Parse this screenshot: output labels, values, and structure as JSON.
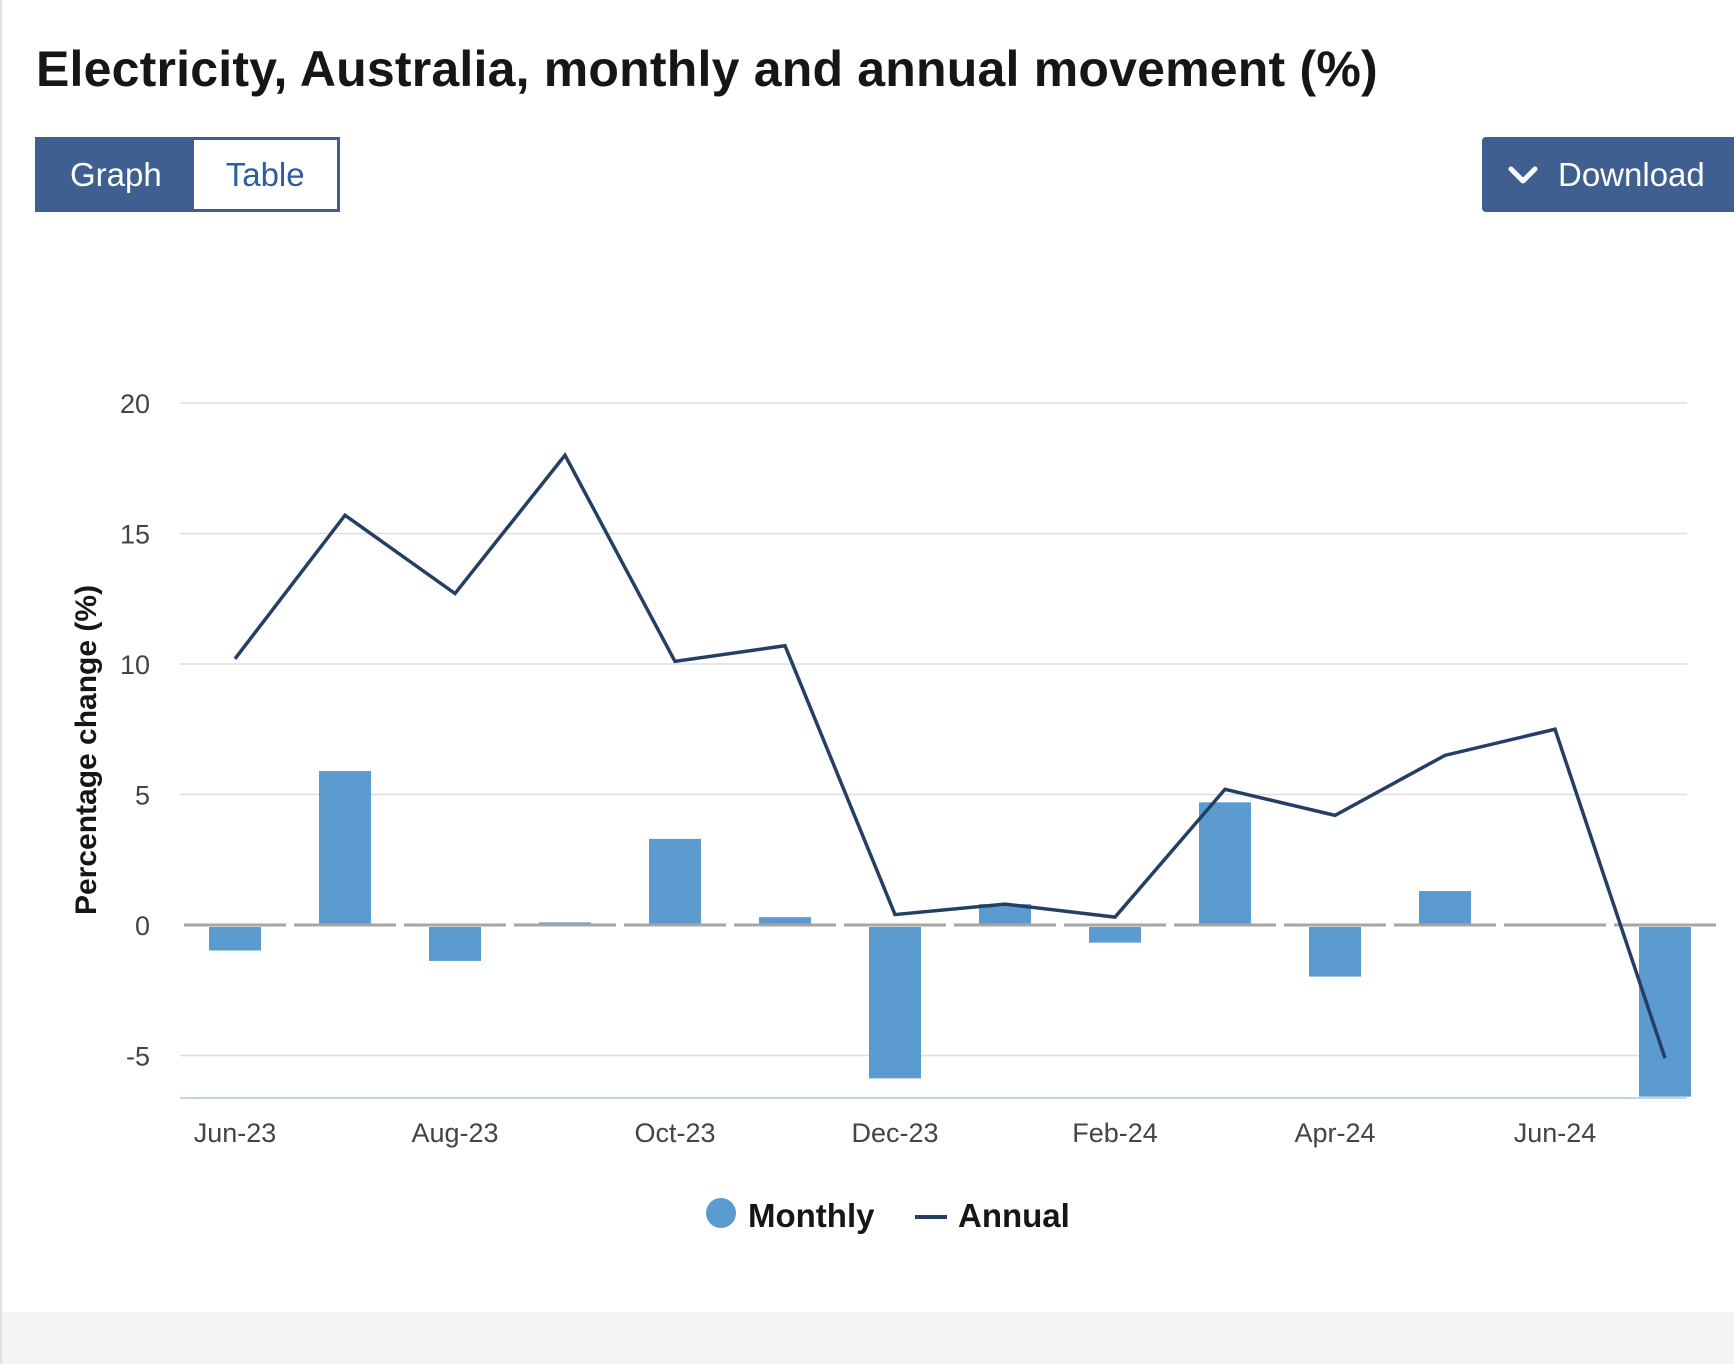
{
  "header": {
    "title": "Electricity, Australia, monthly and annual movement (%)"
  },
  "view_toggle": {
    "graph_label": "Graph",
    "table_label": "Table",
    "selected": "Graph"
  },
  "download": {
    "label": "Download",
    "icon": "chevron-down-icon"
  },
  "colors": {
    "toggle_bg": "#3e5f8f",
    "monthly_bar": "#5b9bd0",
    "annual_line": "#243f63",
    "zero_line": "#a6a6a6",
    "grid": "#dddddd"
  },
  "chart_data": {
    "type": "bar+line",
    "title": "",
    "ylabel": "Percentage change (%)",
    "xlabel": "",
    "ylim": [
      -6.6,
      20
    ],
    "yticks": [
      20,
      15,
      10,
      5,
      0,
      -5
    ],
    "ytick_labels": [
      "20",
      "15",
      "10",
      "5",
      "0",
      "-5"
    ],
    "categories": [
      "Jun-23",
      "Jul-23",
      "Aug-23",
      "Sep-23",
      "Oct-23",
      "Nov-23",
      "Dec-23",
      "Jan-24",
      "Feb-24",
      "Mar-24",
      "Apr-24",
      "May-24",
      "Jun-24",
      "Jul-24"
    ],
    "xtick_labels": [
      "Jun-23",
      "",
      "Aug-23",
      "",
      "Oct-23",
      "",
      "Dec-23",
      "",
      "Feb-24",
      "",
      "Apr-24",
      "",
      "Jun-24",
      ""
    ],
    "series": [
      {
        "name": "Monthly",
        "kind": "bar",
        "values": [
          -0.9,
          5.9,
          -1.3,
          0.1,
          3.3,
          0.3,
          -5.8,
          0.8,
          -0.6,
          4.7,
          -1.9,
          1.3,
          0.0,
          -6.5
        ]
      },
      {
        "name": "Annual",
        "kind": "line",
        "values": [
          10.2,
          15.7,
          12.7,
          18.0,
          10.1,
          10.7,
          0.4,
          0.8,
          0.3,
          5.2,
          4.2,
          6.5,
          7.5,
          -5.1
        ]
      }
    ],
    "legend": [
      "Monthly",
      "Annual"
    ],
    "legend_position": "bottom-center",
    "grid": true
  }
}
